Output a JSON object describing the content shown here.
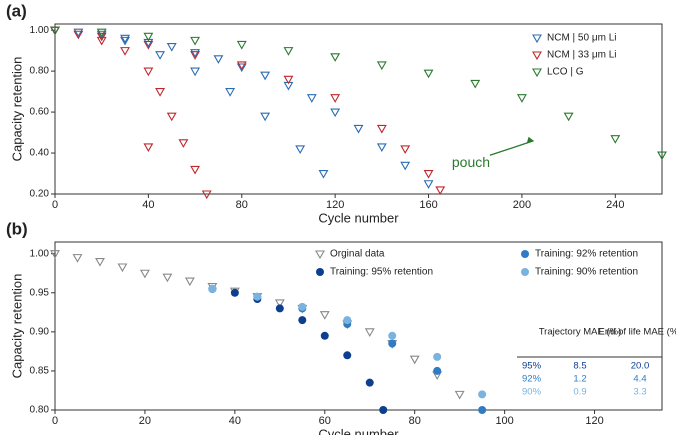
{
  "chart_data": [
    {
      "type": "scatter",
      "panel_label": "(a)",
      "xlabel": "Cycle number",
      "ylabel": "Capacity retention",
      "xlim": [
        0,
        260
      ],
      "xticks": [
        0,
        40,
        80,
        120,
        160,
        200,
        240
      ],
      "ylim": [
        0.2,
        1.03
      ],
      "yticks": [
        {
          "value": 0.2,
          "label": "0.20"
        },
        {
          "value": 0.4,
          "label": "0.40"
        },
        {
          "value": 0.6,
          "label": "0.60"
        },
        {
          "value": 0.8,
          "label": "0.80"
        },
        {
          "value": 1.0,
          "label": "1.00"
        }
      ],
      "legend": "upper right",
      "series": [
        {
          "name": "NCM | 50 μm Li",
          "color": "#2b6cb3",
          "marker": "triangle-down",
          "x": [
            0,
            10,
            20,
            30,
            40,
            50,
            60,
            70,
            80,
            90,
            100,
            110,
            120,
            130,
            140,
            150,
            160,
            30,
            45,
            60,
            75,
            90,
            105,
            115
          ],
          "values": [
            1.0,
            0.99,
            0.98,
            0.96,
            0.94,
            0.92,
            0.89,
            0.86,
            0.82,
            0.78,
            0.73,
            0.67,
            0.6,
            0.52,
            0.43,
            0.34,
            0.25,
            0.95,
            0.88,
            0.8,
            0.7,
            0.58,
            0.42,
            0.3
          ]
        },
        {
          "name": "NCM | 33 μm Li",
          "color": "#c0272d",
          "marker": "triangle-down",
          "x": [
            0,
            10,
            20,
            30,
            40,
            45,
            50,
            55,
            60,
            65,
            20,
            40,
            60,
            80,
            100,
            120,
            140,
            150,
            160,
            165,
            40
          ],
          "values": [
            1.0,
            0.98,
            0.95,
            0.9,
            0.8,
            0.7,
            0.58,
            0.45,
            0.32,
            0.2,
            0.97,
            0.93,
            0.88,
            0.83,
            0.76,
            0.67,
            0.52,
            0.42,
            0.3,
            0.22,
            0.43
          ]
        },
        {
          "name": "LCO | G",
          "color": "#2a7a2e",
          "marker": "triangle-down",
          "x": [
            0,
            20,
            40,
            60,
            80,
            100,
            120,
            140,
            160,
            180,
            200,
            220,
            240,
            260
          ],
          "values": [
            1.0,
            0.99,
            0.97,
            0.95,
            0.93,
            0.9,
            0.87,
            0.83,
            0.79,
            0.74,
            0.67,
            0.58,
            0.47,
            0.39
          ]
        }
      ],
      "annotation": {
        "text": "pouch",
        "x": 170,
        "y": 0.35,
        "arrow_x": 205,
        "arrow_y": 0.46,
        "color": "#2a7a2e"
      }
    },
    {
      "type": "scatter",
      "panel_label": "(b)",
      "xlabel": "Cycle number",
      "ylabel": "Capacity retention",
      "xlim": [
        0,
        135
      ],
      "xticks": [
        0,
        20,
        40,
        60,
        80,
        100,
        120
      ],
      "ylim": [
        0.8,
        1.015
      ],
      "yticks": [
        {
          "value": 0.8,
          "label": "0.80"
        },
        {
          "value": 0.85,
          "label": "0.85"
        },
        {
          "value": 0.9,
          "label": "0.90"
        },
        {
          "value": 0.95,
          "label": "0.95"
        },
        {
          "value": 1.0,
          "label": "1.00"
        }
      ],
      "legend": "upper center",
      "series": [
        {
          "name": "Orginal data",
          "color": "#888888",
          "marker": "triangle-down",
          "x": [
            0,
            5,
            10,
            15,
            20,
            25,
            30,
            35,
            40,
            45,
            50,
            55,
            60,
            65,
            70,
            75,
            80,
            85,
            90
          ],
          "values": [
            1.0,
            0.995,
            0.99,
            0.983,
            0.975,
            0.97,
            0.965,
            0.958,
            0.952,
            0.945,
            0.937,
            0.93,
            0.922,
            0.91,
            0.9,
            0.885,
            0.865,
            0.845,
            0.82
          ]
        },
        {
          "name": "Training: 95% retention",
          "color": "#0d3f8f",
          "marker": "circle",
          "x": [
            35,
            40,
            45,
            50,
            55,
            60,
            65,
            70,
            73
          ],
          "values": [
            0.955,
            0.95,
            0.942,
            0.93,
            0.915,
            0.895,
            0.87,
            0.835,
            0.8
          ]
        },
        {
          "name": "Training: 92% retention",
          "color": "#2f7cc4",
          "marker": "circle",
          "x": [
            35,
            45,
            55,
            65,
            75,
            85,
            95
          ],
          "values": [
            0.955,
            0.945,
            0.93,
            0.91,
            0.885,
            0.85,
            0.8
          ]
        },
        {
          "name": "Training: 90% retention",
          "color": "#7ab3df",
          "marker": "circle",
          "x": [
            35,
            45,
            55,
            65,
            75,
            85,
            95
          ],
          "values": [
            0.955,
            0.945,
            0.932,
            0.915,
            0.895,
            0.868,
            0.82
          ]
        }
      ]
    }
  ],
  "table": {
    "header": [
      "Trajectory MAE (%)",
      "End of life MAE (%)"
    ],
    "rows": [
      [
        "95%",
        "8.5",
        "20.0"
      ],
      [
        "92%",
        "1.2",
        "4.4"
      ],
      [
        "90%",
        "0.9",
        "3.3"
      ]
    ]
  }
}
